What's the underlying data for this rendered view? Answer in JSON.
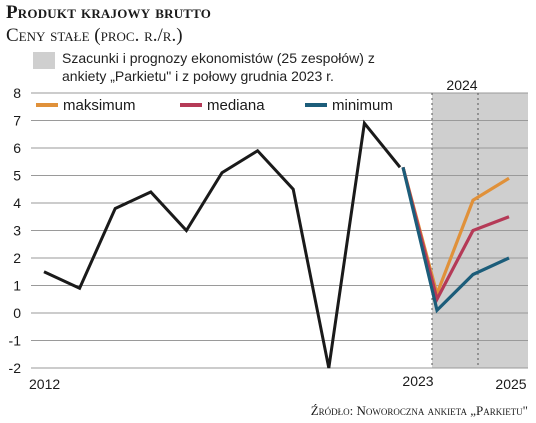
{
  "header": {
    "title": "Produkt krajowy brutto",
    "subtitle": "Ceny stałe (proc. r./r.)"
  },
  "note": {
    "text": "Szacunki i prognozy ekonomistów (25 zespołów) z ankiety „Parkietu\" i z połowy grudnia 2023 r.",
    "shade_color": "#cfcfcf"
  },
  "source": "Źródło: Noworoczna ankieta „Parkietu\"",
  "chart_data": {
    "type": "line",
    "y_ticks": [
      "8",
      "7",
      "6",
      "5",
      "4",
      "3",
      "2",
      "1",
      "0",
      "-1",
      "-2"
    ],
    "ylim": [
      -2,
      8
    ],
    "x_labels": [
      "2012",
      "2023",
      "2025"
    ],
    "shaded_period_label": "2024",
    "history": {
      "color": "#1a1a1a",
      "values": [
        1.5,
        0.9,
        3.8,
        4.4,
        3.0,
        5.1,
        5.9,
        4.5,
        -2.0,
        6.9,
        5.3
      ]
    },
    "series": [
      {
        "name": "maksimum",
        "color": "#e0913a",
        "values": [
          5.3,
          0.7,
          4.1,
          4.9
        ]
      },
      {
        "name": "mediana",
        "color": "#b53a57",
        "values": [
          5.3,
          0.5,
          3.0,
          3.5
        ]
      },
      {
        "name": "minimum",
        "color": "#1c5d7a",
        "values": [
          5.3,
          0.1,
          1.4,
          2.0
        ]
      }
    ],
    "grid": "horizontal",
    "legend_position": "top"
  }
}
